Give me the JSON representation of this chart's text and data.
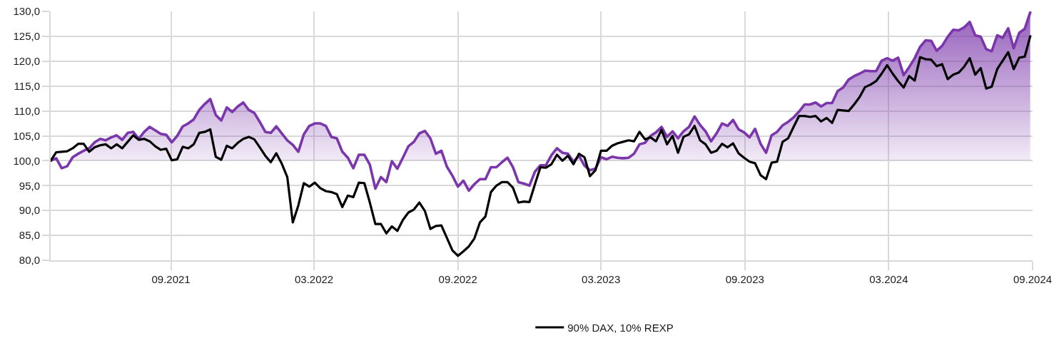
{
  "chart_data": {
    "type": "line",
    "x": [
      "2021-04-30",
      "2021-05-07",
      "2021-05-14",
      "2021-05-21",
      "2021-05-28",
      "2021-06-04",
      "2021-06-11",
      "2021-06-18",
      "2021-06-25",
      "2021-07-02",
      "2021-07-09",
      "2021-07-16",
      "2021-07-23",
      "2021-07-30",
      "2021-08-06",
      "2021-08-13",
      "2021-08-20",
      "2021-08-27",
      "2021-09-03",
      "2021-09-10",
      "2021-09-17",
      "2021-09-24",
      "2021-10-01",
      "2021-10-08",
      "2021-10-15",
      "2021-10-22",
      "2021-10-29",
      "2021-11-05",
      "2021-11-12",
      "2021-11-19",
      "2021-11-26",
      "2021-12-03",
      "2021-12-10",
      "2021-12-17",
      "2021-12-24",
      "2021-12-31",
      "2022-01-07",
      "2022-01-14",
      "2022-01-21",
      "2022-01-28",
      "2022-02-04",
      "2022-02-11",
      "2022-02-18",
      "2022-02-25",
      "2022-03-04",
      "2022-03-11",
      "2022-03-18",
      "2022-03-25",
      "2022-04-01",
      "2022-04-08",
      "2022-04-15",
      "2022-04-22",
      "2022-04-29",
      "2022-05-06",
      "2022-05-13",
      "2022-05-20",
      "2022-05-27",
      "2022-06-03",
      "2022-06-10",
      "2022-06-17",
      "2022-06-24",
      "2022-07-01",
      "2022-07-08",
      "2022-07-15",
      "2022-07-22",
      "2022-07-29",
      "2022-08-05",
      "2022-08-12",
      "2022-08-19",
      "2022-08-26",
      "2022-09-02",
      "2022-09-09",
      "2022-09-16",
      "2022-09-23",
      "2022-09-30",
      "2022-10-07",
      "2022-10-14",
      "2022-10-21",
      "2022-10-28",
      "2022-11-04",
      "2022-11-11",
      "2022-11-18",
      "2022-11-25",
      "2022-12-02",
      "2022-12-09",
      "2022-12-16",
      "2022-12-23",
      "2022-12-30",
      "2023-01-06",
      "2023-01-13",
      "2023-01-20",
      "2023-01-27",
      "2023-02-03",
      "2023-02-10",
      "2023-02-17",
      "2023-02-24",
      "2023-03-03",
      "2023-03-10",
      "2023-03-17",
      "2023-03-24",
      "2023-03-31",
      "2023-04-07",
      "2023-04-14",
      "2023-04-21",
      "2023-04-28",
      "2023-05-05",
      "2023-05-12",
      "2023-05-19",
      "2023-05-26",
      "2023-06-02",
      "2023-06-09",
      "2023-06-16",
      "2023-06-23",
      "2023-06-30",
      "2023-07-07",
      "2023-07-14",
      "2023-07-21",
      "2023-07-28",
      "2023-08-04",
      "2023-08-11",
      "2023-08-18",
      "2023-08-25",
      "2023-09-01",
      "2023-09-08",
      "2023-09-15",
      "2023-09-22",
      "2023-09-29",
      "2023-10-06",
      "2023-10-13",
      "2023-10-20",
      "2023-10-27",
      "2023-11-03",
      "2023-11-10",
      "2023-11-17",
      "2023-11-24",
      "2023-12-01",
      "2023-12-08",
      "2023-12-15",
      "2023-12-22",
      "2023-12-29",
      "2024-01-05",
      "2024-01-12",
      "2024-01-19",
      "2024-01-26",
      "2024-02-02",
      "2024-02-09",
      "2024-02-16",
      "2024-02-23",
      "2024-03-01",
      "2024-03-08",
      "2024-03-15",
      "2024-03-22",
      "2024-03-29",
      "2024-04-05",
      "2024-04-12",
      "2024-04-19",
      "2024-04-26",
      "2024-05-03",
      "2024-05-10",
      "2024-05-17",
      "2024-05-24",
      "2024-05-31",
      "2024-06-07",
      "2024-06-14",
      "2024-06-21",
      "2024-06-28",
      "2024-07-05",
      "2024-07-12",
      "2024-07-19",
      "2024-07-26",
      "2024-08-02",
      "2024-08-09",
      "2024-08-16",
      "2024-08-23",
      "2024-08-30",
      "2024-09-06",
      "2024-09-13",
      "2024-09-20",
      "2024-09-27"
    ],
    "xlim": [
      "2021-04-30",
      "2024-09-30"
    ],
    "xticks": [
      {
        "value": "2021-09-30",
        "label": "09.2021"
      },
      {
        "value": "2022-03-31",
        "label": "03.2022"
      },
      {
        "value": "2022-09-30",
        "label": "09.2022"
      },
      {
        "value": "2023-03-31",
        "label": "03.2023"
      },
      {
        "value": "2023-09-30",
        "label": "09.2023"
      },
      {
        "value": "2024-03-31",
        "label": "03.2024"
      },
      {
        "value": "2024-09-30",
        "label": "09.2024"
      }
    ],
    "ylim": [
      80,
      130
    ],
    "yticks": [
      {
        "value": 80,
        "label": "80,0"
      },
      {
        "value": 85,
        "label": "85,0"
      },
      {
        "value": 90,
        "label": "90,0"
      },
      {
        "value": 95,
        "label": "95,0"
      },
      {
        "value": 100,
        "label": "100,0"
      },
      {
        "value": 105,
        "label": "105,0"
      },
      {
        "value": 110,
        "label": "110,0"
      },
      {
        "value": 115,
        "label": "115,0"
      },
      {
        "value": 120,
        "label": "120,0"
      },
      {
        "value": 125,
        "label": "125,0"
      },
      {
        "value": 130,
        "label": "130,0"
      }
    ],
    "grid": true,
    "legend": "bottom",
    "series": [
      {
        "type": "area",
        "color": "#7a36aa",
        "values": [
          100.0,
          100.5,
          98.5,
          98.9,
          100.7,
          101.4,
          102.0,
          102.5,
          103.7,
          104.4,
          104.1,
          104.7,
          105.1,
          104.2,
          105.6,
          105.8,
          104.4,
          105.8,
          106.8,
          106.1,
          105.4,
          105.2,
          103.7,
          105.0,
          106.9,
          107.5,
          108.3,
          110.2,
          111.4,
          112.4,
          109.2,
          108.1,
          110.7,
          109.8,
          110.9,
          111.7,
          110.2,
          109.6,
          107.8,
          105.8,
          105.6,
          106.9,
          105.5,
          104.1,
          103.2,
          101.8,
          105.3,
          107.0,
          107.5,
          107.5,
          107.0,
          104.8,
          104.5,
          101.8,
          100.6,
          98.5,
          101.2,
          101.2,
          99.2,
          94.4,
          96.7,
          95.7,
          99.9,
          98.4,
          100.6,
          102.9,
          103.8,
          105.5,
          106.0,
          104.5,
          101.4,
          102.0,
          98.8,
          97.0,
          94.8,
          96.0,
          94.0,
          95.3,
          96.3,
          96.3,
          98.7,
          98.7,
          99.7,
          100.6,
          98.7,
          95.7,
          95.4,
          95.0,
          97.8,
          99.1,
          99.1,
          101.1,
          102.5,
          101.6,
          101.4,
          99.8,
          101.0,
          99.0,
          98.1,
          98.4,
          100.7,
          100.3,
          100.8,
          100.6,
          100.5,
          100.6,
          101.4,
          103.3,
          103.6,
          105.0,
          105.7,
          106.8,
          104.8,
          105.9,
          104.5,
          105.9,
          106.8,
          108.9,
          107.2,
          105.9,
          103.9,
          105.5,
          107.5,
          107.0,
          108.2,
          106.3,
          105.7,
          104.7,
          106.4,
          103.4,
          101.6,
          105.1,
          105.8,
          107.1,
          107.8,
          108.7,
          109.9,
          111.3,
          111.3,
          111.7,
          110.9,
          111.6,
          111.6,
          114.0,
          114.7,
          116.3,
          117.0,
          117.5,
          118.1,
          118.0,
          118.0,
          120.1,
          120.6,
          120.1,
          120.7,
          117.2,
          118.8,
          120.6,
          122.9,
          124.2,
          124.1,
          122.1,
          123.1,
          124.9,
          126.3,
          126.2,
          126.8,
          127.9,
          125.2,
          124.9,
          122.4,
          122.0,
          125.2,
          124.7,
          126.6,
          122.6,
          125.7,
          126.5,
          129.8
        ]
      },
      {
        "name": "90% DAX, 10% REXP",
        "color": "#000000",
        "values": [
          100.0,
          101.7,
          101.8,
          101.9,
          102.5,
          103.4,
          103.4,
          101.8,
          102.7,
          103.1,
          103.3,
          102.5,
          103.3,
          102.5,
          103.8,
          105.1,
          104.2,
          104.4,
          103.9,
          102.9,
          102.2,
          102.4,
          100.1,
          100.3,
          102.8,
          102.5,
          103.3,
          105.6,
          105.8,
          106.3,
          100.8,
          100.2,
          103.0,
          102.5,
          103.6,
          104.4,
          104.8,
          104.3,
          102.7,
          101.0,
          99.7,
          101.5,
          99.4,
          96.7,
          87.6,
          91.0,
          95.5,
          94.8,
          95.6,
          94.5,
          93.9,
          93.7,
          93.3,
          90.7,
          93.0,
          92.7,
          95.6,
          95.5,
          91.6,
          87.3,
          87.3,
          85.4,
          86.8,
          85.9,
          88.1,
          89.6,
          90.2,
          91.6,
          89.9,
          86.3,
          86.9,
          87.0,
          84.5,
          82.0,
          80.9,
          81.8,
          82.8,
          84.4,
          87.6,
          88.8,
          93.7,
          95.0,
          95.7,
          95.7,
          94.6,
          91.6,
          91.8,
          91.7,
          95.3,
          98.7,
          98.6,
          99.3,
          101.2,
          100.0,
          101.0,
          99.3,
          101.4,
          100.7,
          96.9,
          98.1,
          102.0,
          102.0,
          103.0,
          103.5,
          103.8,
          104.1,
          103.9,
          105.8,
          104.3,
          104.7,
          103.9,
          106.2,
          103.3,
          105.0,
          101.6,
          104.8,
          105.3,
          107.0,
          104.1,
          103.3,
          101.6,
          102.0,
          103.4,
          102.7,
          103.5,
          101.5,
          100.6,
          99.8,
          99.5,
          97.1,
          96.3,
          99.6,
          99.8,
          103.8,
          104.5,
          106.8,
          109.0,
          109.0,
          108.8,
          109.0,
          107.9,
          108.6,
          107.6,
          110.2,
          110.1,
          110.0,
          111.3,
          112.8,
          114.8,
          115.3,
          116.0,
          117.5,
          119.2,
          117.5,
          116.0,
          114.7,
          117.0,
          116.1,
          120.8,
          120.4,
          120.3,
          119.0,
          119.4,
          116.4,
          117.3,
          117.7,
          118.9,
          120.6,
          117.3,
          118.6,
          114.5,
          114.9,
          118.4,
          120.1,
          121.8,
          118.4,
          120.7,
          120.9,
          125.0
        ]
      }
    ]
  }
}
